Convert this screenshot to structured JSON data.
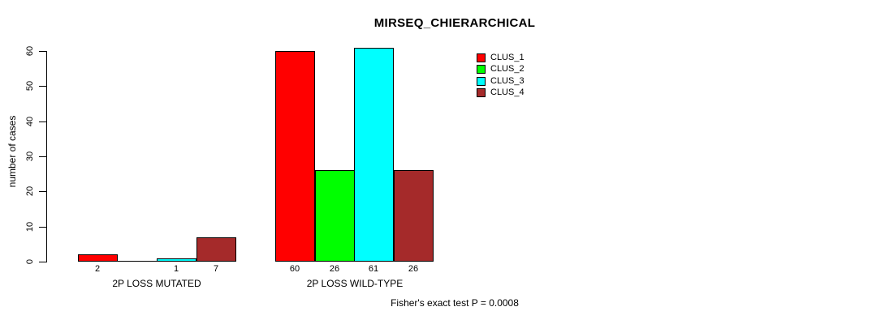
{
  "chart_data": {
    "type": "bar",
    "title": "MIRSEQ_CHIERARCHICAL",
    "ylabel": "number of cases",
    "xlabel": "",
    "ylim": [
      0,
      60
    ],
    "yticks": [
      0,
      10,
      20,
      30,
      40,
      50,
      60
    ],
    "grid": false,
    "legend_position": "top-right-inside",
    "series": [
      {
        "name": "CLUS_1",
        "color": "#FF0000"
      },
      {
        "name": "CLUS_2",
        "color": "#00FF00"
      },
      {
        "name": "CLUS_3",
        "color": "#00FFFF"
      },
      {
        "name": "CLUS_4",
        "color": "#A52A2A"
      }
    ],
    "groups": [
      {
        "label": "2P LOSS MUTATED",
        "values": [
          2,
          0,
          1,
          7
        ],
        "bar_labels": [
          "2",
          "",
          "1",
          "7"
        ]
      },
      {
        "label": "2P LOSS WILD-TYPE",
        "values": [
          60,
          26,
          61,
          26
        ],
        "bar_labels": [
          "60",
          "26",
          "61",
          "26"
        ]
      }
    ],
    "annotation": "Fisher's exact test P = 0.0008",
    "colors": {
      "background": "#FFFFFF",
      "axis": "#000000",
      "text": "#000000"
    }
  }
}
